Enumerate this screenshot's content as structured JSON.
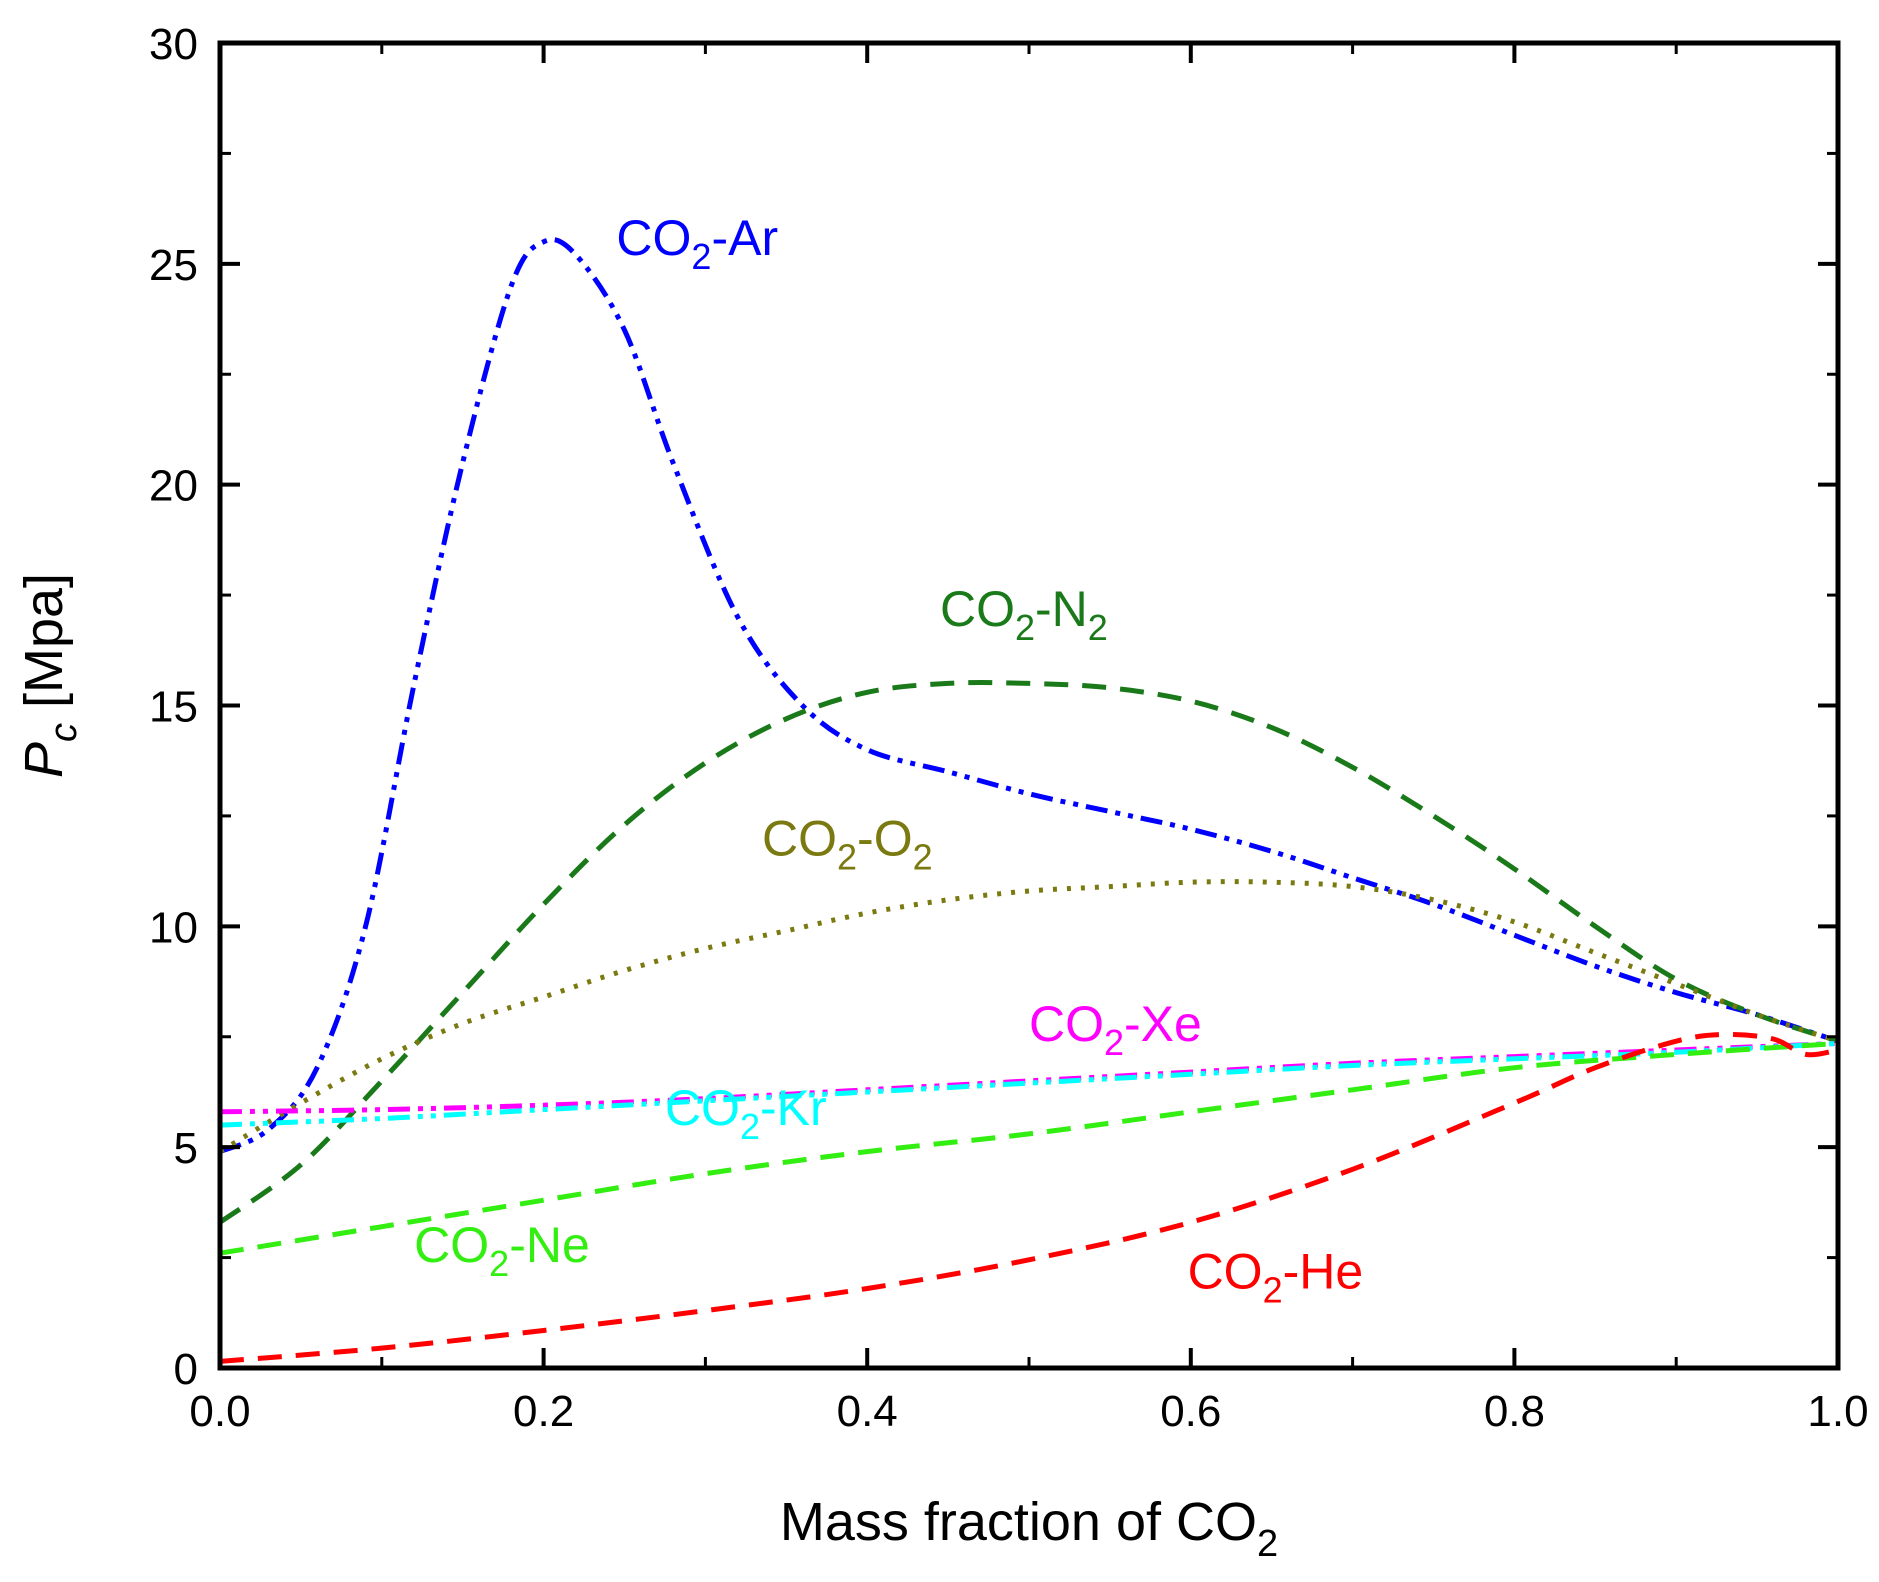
{
  "chart_data": {
    "type": "line",
    "title": "",
    "xlabel": {
      "text": "Mass fraction of CO",
      "sub": "2"
    },
    "ylabel": {
      "italic": "P",
      "sub": "c",
      "text": " [Mpa]"
    },
    "xlim": [
      0.0,
      1.0
    ],
    "ylim": [
      0,
      30
    ],
    "xticks": [
      "0.0",
      "0.2",
      "0.4",
      "0.6",
      "0.8",
      "1.0"
    ],
    "yticks": [
      "0",
      "5",
      "10",
      "15",
      "20",
      "25",
      "30"
    ],
    "grid": false,
    "series": [
      {
        "name": "CO2-Ar",
        "label": {
          "a": "CO",
          "sub": "2",
          "b": "-Ar"
        },
        "color": "#0000ff",
        "dash": "dashdotdot",
        "label_anchor": [
          0.245,
          25.2
        ],
        "x": [
          0.0,
          0.03,
          0.06,
          0.09,
          0.12,
          0.15,
          0.18,
          0.2,
          0.22,
          0.25,
          0.28,
          0.32,
          0.36,
          0.4,
          0.45,
          0.5,
          0.55,
          0.6,
          0.65,
          0.7,
          0.75,
          0.8,
          0.85,
          0.9,
          0.95,
          1.0
        ],
        "y": [
          4.9,
          5.4,
          6.8,
          10.0,
          15.5,
          20.5,
          24.5,
          25.5,
          25.2,
          23.5,
          20.5,
          17.0,
          15.0,
          14.0,
          13.5,
          13.0,
          12.6,
          12.2,
          11.7,
          11.1,
          10.5,
          9.8,
          9.1,
          8.5,
          8.0,
          7.4
        ]
      },
      {
        "name": "CO2-N2",
        "label": {
          "a": "CO",
          "sub": "2",
          "b": "-N",
          "sub2": "2"
        },
        "color": "#1a7a1a",
        "dash": "dash",
        "label_anchor": [
          0.445,
          16.8
        ],
        "x": [
          0.0,
          0.05,
          0.1,
          0.15,
          0.2,
          0.25,
          0.3,
          0.35,
          0.4,
          0.45,
          0.5,
          0.55,
          0.6,
          0.65,
          0.7,
          0.75,
          0.8,
          0.85,
          0.9,
          0.95,
          1.0
        ],
        "y": [
          3.3,
          4.6,
          6.5,
          8.5,
          10.5,
          12.3,
          13.7,
          14.7,
          15.3,
          15.5,
          15.5,
          15.4,
          15.1,
          14.5,
          13.6,
          12.5,
          11.3,
          10.0,
          8.8,
          8.0,
          7.4
        ]
      },
      {
        "name": "CO2-O2",
        "label": {
          "a": "CO",
          "sub": "2",
          "b": "-O",
          "sub2": "2"
        },
        "color": "#7a7a10",
        "dash": "dot",
        "label_anchor": [
          0.335,
          11.6
        ],
        "x": [
          0.0,
          0.05,
          0.1,
          0.15,
          0.2,
          0.25,
          0.3,
          0.35,
          0.4,
          0.45,
          0.5,
          0.55,
          0.6,
          0.65,
          0.7,
          0.75,
          0.8,
          0.85,
          0.9,
          0.95,
          1.0
        ],
        "y": [
          4.9,
          6.0,
          7.0,
          7.8,
          8.4,
          9.0,
          9.5,
          9.9,
          10.3,
          10.6,
          10.8,
          10.9,
          11.0,
          11.0,
          10.9,
          10.6,
          10.1,
          9.4,
          8.7,
          8.0,
          7.4
        ]
      },
      {
        "name": "CO2-Xe",
        "label": {
          "a": "CO",
          "sub": "2",
          "b": "-Xe"
        },
        "color": "#ff00ff",
        "dash": "dashdotdot",
        "label_anchor": [
          0.5,
          7.4
        ],
        "x": [
          0.0,
          0.1,
          0.2,
          0.3,
          0.4,
          0.5,
          0.6,
          0.7,
          0.8,
          0.9,
          1.0
        ],
        "y": [
          5.8,
          5.85,
          5.95,
          6.1,
          6.3,
          6.5,
          6.7,
          6.9,
          7.05,
          7.2,
          7.35
        ]
      },
      {
        "name": "CO2-Kr",
        "label": {
          "a": "CO",
          "sub": "2",
          "b": "-Kr"
        },
        "color": "#00ffff",
        "dash": "dashdotdot",
        "label_anchor": [
          0.275,
          5.5
        ],
        "x": [
          0.0,
          0.1,
          0.2,
          0.3,
          0.4,
          0.5,
          0.6,
          0.7,
          0.8,
          0.9,
          1.0
        ],
        "y": [
          5.5,
          5.65,
          5.85,
          6.05,
          6.25,
          6.45,
          6.65,
          6.85,
          7.0,
          7.15,
          7.35
        ]
      },
      {
        "name": "CO2-Ne",
        "label": {
          "a": "CO",
          "sub": "2",
          "b": "-Ne"
        },
        "color": "#33ee11",
        "dash": "dash",
        "label_anchor": [
          0.12,
          2.4
        ],
        "x": [
          0.0,
          0.1,
          0.2,
          0.3,
          0.4,
          0.5,
          0.6,
          0.7,
          0.8,
          0.9,
          1.0
        ],
        "y": [
          2.6,
          3.2,
          3.8,
          4.4,
          4.9,
          5.3,
          5.8,
          6.3,
          6.8,
          7.1,
          7.35
        ]
      },
      {
        "name": "CO2-He",
        "label": {
          "a": "CO",
          "sub": "2",
          "b": "-He"
        },
        "color": "#ff0000",
        "dash": "dash",
        "label_anchor": [
          0.598,
          1.8
        ],
        "x": [
          0.0,
          0.1,
          0.2,
          0.3,
          0.4,
          0.5,
          0.6,
          0.7,
          0.8,
          0.85,
          0.9,
          0.93,
          0.96,
          0.98,
          1.0
        ],
        "y": [
          0.15,
          0.45,
          0.85,
          1.3,
          1.8,
          2.45,
          3.3,
          4.5,
          6.0,
          6.8,
          7.4,
          7.55,
          7.45,
          7.1,
          7.2
        ]
      }
    ]
  }
}
